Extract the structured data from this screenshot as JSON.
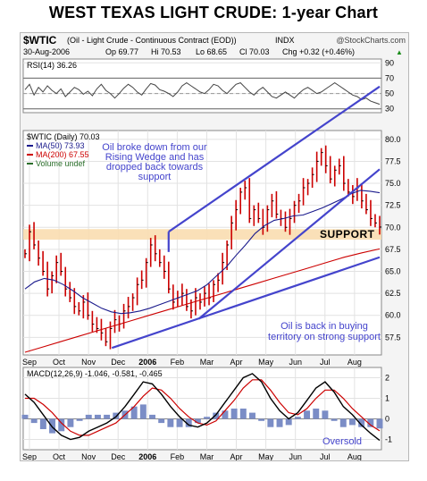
{
  "page": {
    "title": "WEST TEXAS LIGHT CRUDE: 1-year Chart"
  },
  "header": {
    "symbol": "$WTIC",
    "description": "(Oil - Light Crude - Continuous Contract (EOD))",
    "exchange": "INDX",
    "source": "@StockCharts.com",
    "date": "30-Aug-2006",
    "quote": {
      "open": "Op 69.77",
      "high": "Hi 70.53",
      "low": "Lo 68.65",
      "close": "Cl 70.03",
      "change": "Chg +0.32 (+0.46%)",
      "change_arrow": "▲"
    }
  },
  "colors": {
    "price_bars": "#cc0000",
    "ma50": "#1a1a8c",
    "ma200": "#cc0000",
    "trendlines": "#4444cc",
    "annotation_text": "#4444cc",
    "support_band": "#f9ddb0",
    "macd_line": "#000000",
    "signal_line": "#cc0000",
    "histogram": "#7b8dc6",
    "rsi_line": "#444444",
    "volume": "#2a6e2a"
  },
  "chart_data": [
    {
      "type": "line",
      "name": "rsi-panel",
      "title": "RSI(14) 36.26",
      "ylim": [
        25,
        95
      ],
      "yticks": [
        30,
        50,
        70,
        90
      ],
      "yticks_labels": [
        "30",
        "50",
        "70",
        "90"
      ],
      "reference_lines": [
        30,
        50,
        70
      ],
      "series": [
        {
          "name": "RSI(14)",
          "values": [
            55,
            62,
            48,
            58,
            52,
            60,
            54,
            50,
            56,
            46,
            52,
            58,
            55,
            49,
            53,
            47,
            56,
            62,
            54,
            50,
            44,
            50,
            57,
            62,
            58,
            52,
            48,
            56,
            63,
            61,
            55,
            53,
            50,
            46,
            52,
            60,
            64,
            60,
            56,
            52,
            50,
            55,
            62,
            60,
            54,
            50,
            56,
            62,
            64,
            58,
            52,
            48,
            54,
            58,
            52,
            46,
            44,
            48,
            52,
            48,
            44,
            50,
            55,
            58,
            54,
            50,
            52,
            56,
            60,
            64,
            60,
            56,
            52,
            48,
            46,
            42,
            44,
            40,
            38,
            36
          ]
        }
      ]
    },
    {
      "type": "line",
      "name": "price-panel",
      "title": "$WTIC (Daily) 70.03",
      "ylim": [
        55.5,
        81
      ],
      "yticks": [
        57.5,
        60,
        62.5,
        65,
        67.5,
        70,
        72.5,
        75,
        77.5,
        80
      ],
      "yticks_labels": [
        "57.5",
        "60.0",
        "62.5",
        "65.0",
        "67.5",
        "70.0",
        "72.5",
        "75.0",
        "77.5",
        "80.0"
      ],
      "x_labels": [
        "Sep",
        "Oct",
        "Nov",
        "Dec",
        "2006",
        "Feb",
        "Mar",
        "Apr",
        "May",
        "Jun",
        "Jul",
        "Aug"
      ],
      "legend": [
        {
          "label": "MA(50) 73.93",
          "color": "#1a1a8c"
        },
        {
          "label": "MA(200) 67.55",
          "color": "#cc0000"
        },
        {
          "label": "Volume undef",
          "color": "#2a6e2a"
        }
      ],
      "series": [
        {
          "name": "$WTIC",
          "values": [
            67.0,
            69.5,
            68.0,
            66.5,
            65.0,
            63.0,
            64.5,
            66.0,
            65.0,
            63.0,
            62.0,
            61.0,
            60.5,
            61.5,
            60.0,
            59.0,
            58.5,
            58.0,
            57.0,
            58.5,
            59.5,
            59.0,
            60.5,
            61.0,
            62.0,
            63.5,
            64.0,
            66.0,
            68.0,
            67.0,
            66.0,
            65.0,
            63.0,
            61.5,
            62.0,
            62.5,
            61.0,
            60.5,
            62.0,
            61.5,
            62.5,
            62.0,
            63.5,
            64.0,
            66.0,
            68.0,
            70.5,
            72.0,
            74.0,
            74.5,
            71.0,
            72.0,
            71.0,
            70.0,
            72.0,
            73.0,
            71.5,
            71.0,
            70.0,
            71.0,
            72.5,
            73.0,
            74.5,
            75.0,
            76.0,
            77.5,
            78.5,
            77.0,
            75.5,
            76.5,
            77.0,
            75.0,
            74.0,
            73.5,
            74.5,
            73.0,
            72.0,
            71.0,
            70.5,
            70.03
          ]
        },
        {
          "name": "MA(50)",
          "values": [
            63.0,
            63.8,
            64.2,
            64.0,
            63.5,
            62.8,
            62.0,
            61.4,
            60.8,
            60.4,
            60.2,
            60.3,
            60.5,
            60.8,
            61.2,
            61.6,
            62.0,
            62.4,
            62.8,
            63.5,
            64.5,
            65.5,
            66.8,
            68.0,
            69.3,
            70.2,
            70.8,
            71.0,
            71.3,
            71.4,
            71.8,
            72.2,
            72.7,
            73.2,
            73.8,
            74.2,
            74.1,
            73.93
          ]
        },
        {
          "name": "MA(200)",
          "values": [
            55.8,
            56.4,
            57.0,
            57.6,
            58.2,
            58.8,
            59.4,
            60.0,
            60.6,
            61.2,
            61.8,
            62.4,
            63.0,
            63.6,
            64.2,
            64.8,
            65.4,
            66.0,
            66.6,
            67.1,
            67.55
          ]
        }
      ],
      "support_band": [
        68.6,
        69.8
      ],
      "annotations": [
        "Oil broke down from our Rising Wedge and has dropped back towards support",
        "SUPPORT",
        "Oil is back in buying territory on strong support"
      ]
    },
    {
      "type": "line",
      "name": "macd-panel",
      "title": "MACD(12,26,9) -1.046, -0.581, -0.465",
      "ylim": [
        -1.5,
        2.5
      ],
      "yticks": [
        -1,
        0,
        1,
        2
      ],
      "yticks_labels": [
        "-1",
        "0",
        "1",
        "2"
      ],
      "x_labels": [
        "Sep",
        "Oct",
        "Nov",
        "Dec",
        "2006",
        "Feb",
        "Mar",
        "Apr",
        "May",
        "Jun",
        "Jul",
        "Aug"
      ],
      "series": [
        {
          "name": "MACD",
          "values": [
            1.2,
            0.8,
            0.2,
            -0.4,
            -0.8,
            -1.0,
            -0.9,
            -0.6,
            -0.4,
            -0.2,
            0.1,
            0.6,
            1.2,
            1.8,
            1.7,
            1.2,
            0.6,
            0.1,
            -0.3,
            -0.4,
            -0.2,
            0.2,
            0.8,
            1.4,
            2.0,
            2.2,
            1.8,
            1.0,
            0.4,
            0.0,
            0.3,
            0.9,
            1.5,
            1.8,
            1.3,
            0.6,
            0.2,
            -0.3,
            -0.7,
            -1.046
          ]
        },
        {
          "name": "Signal",
          "values": [
            1.0,
            1.0,
            0.7,
            0.3,
            -0.2,
            -0.6,
            -0.8,
            -0.8,
            -0.6,
            -0.4,
            -0.2,
            0.2,
            0.6,
            1.1,
            1.5,
            1.4,
            1.0,
            0.5,
            0.1,
            -0.2,
            -0.3,
            -0.1,
            0.4,
            0.9,
            1.5,
            1.9,
            1.9,
            1.4,
            0.8,
            0.3,
            0.2,
            0.5,
            1.0,
            1.4,
            1.4,
            1.0,
            0.5,
            0.1,
            -0.3,
            -0.581
          ]
        }
      ],
      "annotations": [
        "Oversold"
      ]
    }
  ]
}
